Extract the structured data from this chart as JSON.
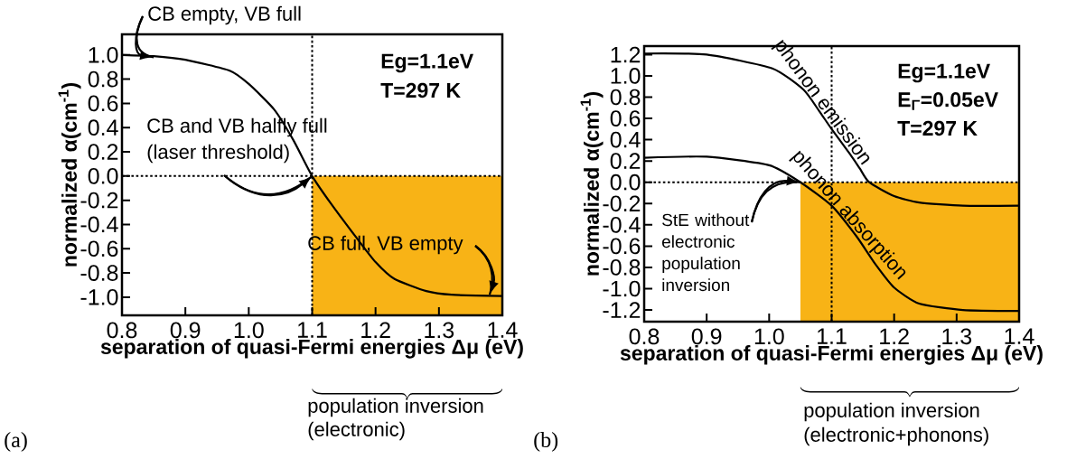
{
  "chart_data": [
    {
      "type": "line",
      "xlabel": "separation of quasi-Fermi energies Δμ (eV)",
      "ylabel": "normalized α(cm$^{-1}$)",
      "xlim": [
        0.8,
        1.4
      ],
      "ylim": [
        -1.15,
        1.17
      ],
      "xticks": [
        0.8,
        0.9,
        {
          "value": 1.0,
          "label": "1.0"
        },
        1.1,
        1.2,
        1.3,
        1.4
      ],
      "yticks": [
        {
          "value": -1.0,
          "label": "-1.0"
        },
        -0.8,
        -0.6,
        -0.4,
        -0.2,
        {
          "value": 0.0,
          "label": "0.0"
        },
        0.2,
        0.4,
        0.6,
        0.8,
        {
          "value": 1.0,
          "label": "1.0"
        }
      ],
      "series": [
        {
          "color": "#000000",
          "x": [
            0.8,
            0.85,
            0.9,
            0.97,
            1.0,
            1.04,
            1.07,
            1.1,
            1.13,
            1.17,
            1.2,
            1.23,
            1.28,
            1.32,
            1.4
          ],
          "values": [
            1.0,
            0.99,
            0.96,
            0.87,
            0.76,
            0.55,
            0.3,
            0,
            -0.23,
            -0.51,
            -0.71,
            -0.85,
            -0.95,
            -0.98,
            -0.99
          ]
        }
      ],
      "ref_lines": [
        {
          "axis": "x",
          "value": 1.1,
          "line_style": "dotted"
        },
        {
          "axis": "y",
          "value": 0,
          "line_style": "dotted"
        }
      ],
      "bands": [
        {
          "axis": "x",
          "from": 1.1,
          "to": 1.4,
          "color": "#f8b316"
        }
      ],
      "annotations": [
        {
          "text": "CB empty, VB full",
          "x": 0.85,
          "y": 0.98
        },
        "CB and VB halfly full",
        {
          "text": "(laser threshold)",
          "x": 1.1,
          "y": 0
        },
        {
          "text": "CB full, VB empty",
          "x": 1.38,
          "y": -0.98
        },
        "Eg=1.1eV",
        "T=297 K",
        "population inversion",
        "(electronic)",
        "(a)"
      ]
    },
    {
      "type": "line",
      "xlabel": "separation of quasi-Fermi energies Δμ (eV)",
      "ylabel": "normalized α(cm$^{-1}$)",
      "xlim": [
        0.8,
        1.4
      ],
      "ylim": [
        -1.31,
        1.28
      ],
      "xticks": [
        0.8,
        0.9,
        {
          "value": 1.0,
          "label": "1.0"
        },
        1.1,
        1.2,
        1.3,
        1.4
      ],
      "yticks": [
        -1.2,
        {
          "value": -1.0,
          "label": "-1.0"
        },
        -0.8,
        -0.6,
        -0.4,
        -0.2,
        {
          "value": 0.0,
          "label": "0.0"
        },
        0.2,
        0.4,
        0.6,
        0.8,
        {
          "value": 1.0,
          "label": "1.0"
        },
        1.2
      ],
      "series": [
        {
          "name": "phonon emission",
          "color": "#000000",
          "x": [
            0.8,
            0.9,
            1.005,
            1.055,
            1.08,
            1.1,
            1.13,
            1.145,
            1.16,
            1.2,
            1.24,
            1.31,
            1.4
          ],
          "values": [
            1.21,
            1.2,
            1.07,
            0.87,
            0.67,
            0.5,
            0.26,
            0.13,
            0,
            -0.13,
            -0.19,
            -0.22,
            -0.22
          ]
        },
        {
          "name": "phonon absorption",
          "color": "#000000",
          "x": [
            0.8,
            0.9,
            1.0,
            1.05,
            1.1,
            1.14,
            1.17,
            1.2,
            1.24,
            1.31,
            1.4
          ],
          "values": [
            0.23,
            0.24,
            0.16,
            0,
            -0.22,
            -0.51,
            -0.77,
            -0.99,
            -1.14,
            -1.2,
            -1.21
          ]
        }
      ],
      "ref_lines": [
        {
          "axis": "x",
          "value": 1.1,
          "line_style": "dotted"
        },
        {
          "axis": "y",
          "value": 0,
          "line_style": "dotted"
        }
      ],
      "bands": [
        {
          "axis": "x",
          "from": 1.05,
          "to": 1.4,
          "color": "#f8b316"
        }
      ],
      "annotations": [
        "Eg=1.1eV",
        "E$_{Γ}$=0.05eV",
        "T=297 K",
        {
          "text": "StE without electronic population inversion",
          "x": 1.05,
          "y": 0
        },
        "population inversion",
        "(electronic+phonons)",
        "(b)"
      ]
    }
  ]
}
